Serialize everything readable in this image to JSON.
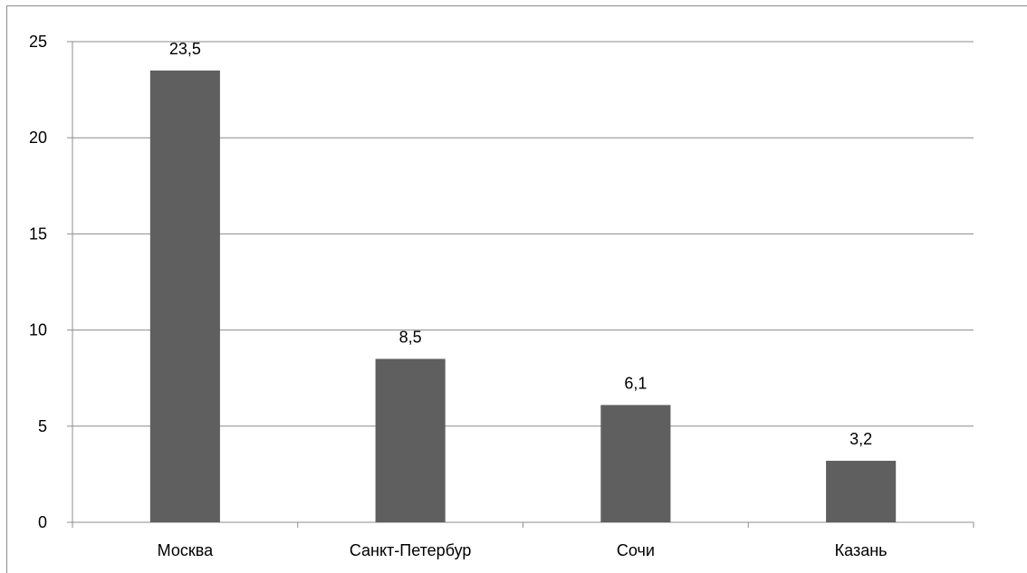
{
  "chart_data": {
    "type": "bar",
    "title": "",
    "xlabel": "",
    "ylabel": "",
    "categories": [
      "Москва",
      "Санкт-Петербур",
      "Сочи",
      "Казань"
    ],
    "values": [
      23.5,
      8.5,
      6.1,
      3.2
    ],
    "data_labels": [
      "23,5",
      "8,5",
      "6,1",
      "3,2"
    ],
    "yticks": [
      0,
      5,
      10,
      15,
      20,
      25
    ],
    "ytick_labels": [
      "0",
      "5",
      "10",
      "15",
      "20",
      "25"
    ],
    "ylim": [
      0,
      25
    ],
    "grid": true,
    "legend": "none",
    "colors": {
      "bar": "#5f5f5f",
      "grid": "#8c8c8c",
      "axis": "#8c8c8c",
      "text": "#000000"
    }
  }
}
